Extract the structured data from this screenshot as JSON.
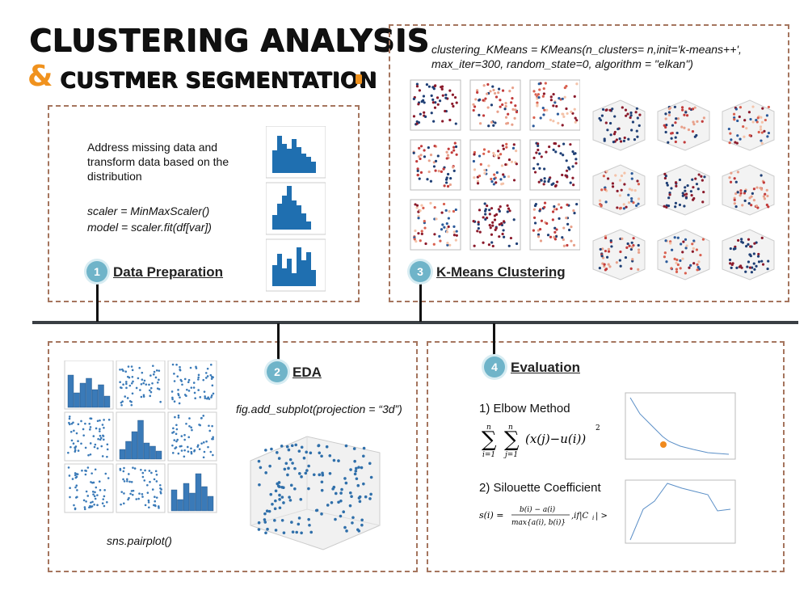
{
  "title": {
    "line1": "CLUSTERING ANALYSIS",
    "ampersand": "&",
    "line2": "CUSTMER SEGMENTATION"
  },
  "sections": [
    {
      "num": "1",
      "title": "Data Preparation",
      "text": "Address missing data and transform data based on the distribution",
      "code1": "scaler = MinMaxScaler()",
      "code2": "model = scaler.fit(df[var])"
    },
    {
      "num": "2",
      "title": "EDA",
      "code": "fig.add_subplot(projection = “3d”)",
      "caption": "sns.pairplot()"
    },
    {
      "num": "3",
      "title": "K-Means Clustering",
      "code1": "clustering_KMeans = KMeans(n_clusters= n,init='k-means++',",
      "code2": "max_iter=300, random_state=0, algorithm = \"elkan\")"
    },
    {
      "num": "4",
      "title": "Evaluation",
      "m1": "1) Elbow Method",
      "m2": "2) Silouette Coefficient"
    }
  ],
  "colors": {
    "accent": "#f0921e",
    "badge": "#6fb4c9",
    "dashed": "#a5755e",
    "bar": "#1f6fb0"
  }
}
